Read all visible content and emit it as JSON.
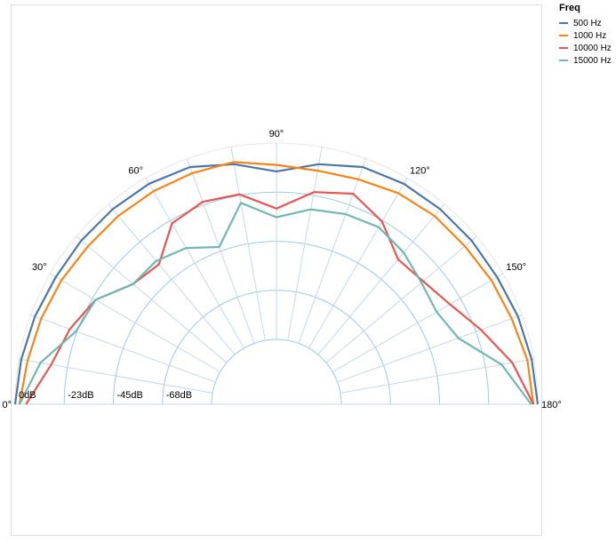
{
  "chart_data": {
    "type": "line",
    "subtype": "polar",
    "title": "",
    "legend": {
      "title": "Freq",
      "position": "top-right",
      "entries": [
        "500 Hz",
        "1000 Hz",
        "10000 Hz",
        "15000 Hz"
      ]
    },
    "angle_axis": {
      "unit": "degrees",
      "range": [
        0,
        180
      ],
      "tick_labels": [
        "0°",
        "30°",
        "60°",
        "90°",
        "120°",
        "150°",
        "180°"
      ]
    },
    "radial_axis": {
      "unit": "dB",
      "range": [
        -90,
        0
      ],
      "tick_labels": [
        "0dB",
        "-23dB",
        "-45dB",
        "-68dB"
      ]
    },
    "grid": true,
    "angles": [
      0,
      10,
      20,
      30,
      40,
      50,
      60,
      70,
      80,
      90,
      100,
      110,
      120,
      130,
      140,
      150,
      160,
      170,
      180
    ],
    "series": [
      {
        "name": "500 Hz",
        "color": "#4c78a8",
        "values": [
          0,
          -1,
          -2,
          -3,
          -3,
          -3,
          -3,
          -4,
          -8,
          -13,
          -8,
          -4,
          -3,
          -3,
          -3,
          -3,
          -2,
          -1,
          0
        ]
      },
      {
        "name": "1000 Hz",
        "color": "#f58518",
        "values": [
          -2,
          -4,
          -5,
          -6,
          -7,
          -7,
          -7,
          -7,
          -7,
          -10,
          -11,
          -10,
          -8,
          -7,
          -7,
          -6,
          -5,
          -3,
          -2
        ]
      },
      {
        "name": "10000 Hz",
        "color": "#e45756",
        "values": [
          -5,
          -15,
          -19,
          -24,
          -34,
          -36,
          -24,
          -21,
          -22,
          -30,
          -21,
          -17,
          -23,
          -33,
          -32,
          -28,
          -20,
          -10,
          -2
        ]
      },
      {
        "name": "15000 Hz",
        "color": "#72b7b2",
        "values": [
          -2,
          -10,
          -22,
          -24,
          -34,
          -34,
          -37,
          -43,
          -26,
          -34,
          -29,
          -27,
          -26,
          -29,
          -33,
          -35,
          -31,
          -15,
          -3
        ]
      }
    ]
  }
}
